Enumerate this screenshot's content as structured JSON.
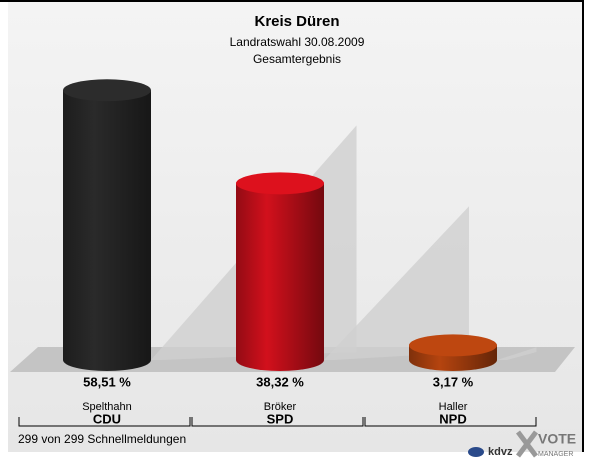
{
  "chart_data": {
    "type": "bar",
    "title": "Kreis Düren",
    "subtitle": "Landratswahl 30.08.2009",
    "subtitle2": "Gesamtergebnis",
    "categories": [
      "Spelthahn",
      "Bröker",
      "Haller"
    ],
    "parties": [
      "CDU",
      "SPD",
      "NPD"
    ],
    "values": [
      58.51,
      38.32,
      3.17
    ],
    "value_labels": [
      "58,51 %",
      "38,32 %",
      "3,17 %"
    ],
    "colors": [
      "#2a2a2a",
      "#d2101c",
      "#b5440f"
    ],
    "footer": "299 von 299 Schnellmeldungen",
    "logo": {
      "brand": "kdvz",
      "vote": "VOTE",
      "manager": "MANAGER"
    }
  }
}
